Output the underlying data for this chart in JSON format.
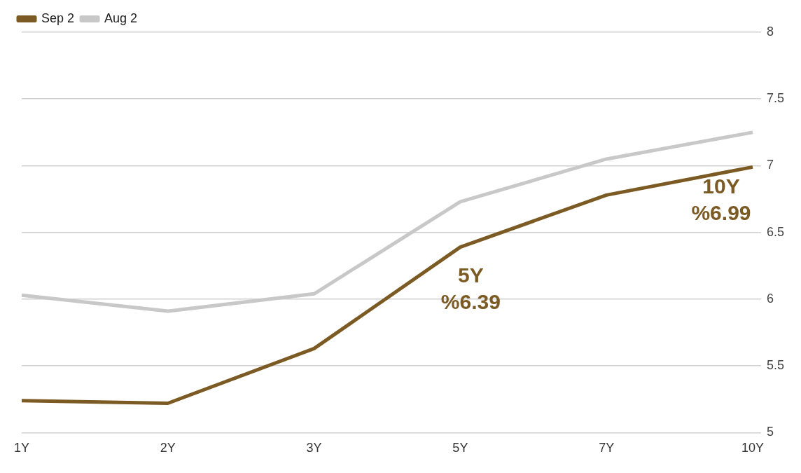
{
  "chart_data": {
    "type": "line",
    "categories": [
      "1Y",
      "2Y",
      "3Y",
      "5Y",
      "7Y",
      "10Y"
    ],
    "series": [
      {
        "name": "Sep 2",
        "color": "#7b5a24",
        "values": [
          5.24,
          5.22,
          5.63,
          6.39,
          6.78,
          6.99
        ]
      },
      {
        "name": "Aug 2",
        "color": "#c8c8c8",
        "values": [
          6.03,
          5.91,
          6.04,
          6.73,
          7.05,
          7.25
        ]
      }
    ],
    "ylim": [
      5,
      8
    ],
    "yticks": [
      5,
      5.5,
      6,
      6.5,
      7,
      7.5,
      8
    ],
    "grid": "y",
    "legend": "top left",
    "marker": "none",
    "annotations": [
      {
        "text": "5Y\n%6.39",
        "x": "5Y",
        "y": 6.39
      },
      {
        "text": "10Y\n%6.99",
        "x": "10Y",
        "y": 6.99
      }
    ]
  }
}
